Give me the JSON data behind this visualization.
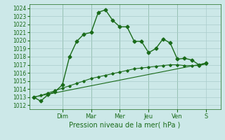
{
  "xlabel": "Pression niveau de la mer( hPa )",
  "ylim": [
    1011.5,
    1024.5
  ],
  "yticks": [
    1012,
    1013,
    1014,
    1015,
    1016,
    1017,
    1018,
    1019,
    1020,
    1021,
    1022,
    1023,
    1024
  ],
  "xlim": [
    -0.3,
    13.0
  ],
  "background_color": "#cce8e8",
  "grid_color": "#aacccc",
  "line_color": "#1a6b1a",
  "day_labels": [
    "Dim",
    "Mar",
    "Mer",
    "Jeu",
    "Ven",
    "S"
  ],
  "day_positions": [
    2.0,
    4.0,
    6.0,
    8.0,
    10.0,
    12.0
  ],
  "series1_x": [
    0,
    0.5,
    1.0,
    1.5,
    2.0,
    2.5,
    3.0,
    3.5,
    4.0,
    4.5,
    5.0,
    5.5,
    6.0,
    6.5,
    7.0,
    7.5,
    8.0,
    8.5,
    9.0,
    9.5,
    10.0,
    10.5,
    11.0,
    11.5,
    12.0
  ],
  "series1_y": [
    1013.0,
    1012.5,
    1013.3,
    1013.7,
    1014.5,
    1018.0,
    1019.9,
    1020.8,
    1021.0,
    1023.5,
    1023.8,
    1022.5,
    1021.7,
    1021.7,
    1019.9,
    1019.9,
    1018.5,
    1019.0,
    1020.2,
    1019.7,
    1017.7,
    1017.8,
    1017.6,
    1017.0,
    1017.2
  ],
  "series2_x": [
    0,
    12.0
  ],
  "series2_y": [
    1013.0,
    1017.2
  ],
  "series3_x": [
    0,
    0.5,
    1.0,
    1.5,
    2.0,
    2.5,
    3.0,
    3.5,
    4.0,
    4.5,
    5.0,
    5.5,
    6.0,
    6.5,
    7.0,
    7.5,
    8.0,
    8.5,
    9.0,
    9.5,
    10.0,
    10.5,
    11.0,
    11.5,
    12.0
  ],
  "series3_y": [
    1013.0,
    1013.2,
    1013.5,
    1013.8,
    1014.1,
    1014.4,
    1014.7,
    1015.0,
    1015.3,
    1015.5,
    1015.7,
    1015.9,
    1016.1,
    1016.3,
    1016.5,
    1016.6,
    1016.7,
    1016.8,
    1016.9,
    1017.0,
    1017.0,
    1016.9,
    1016.9,
    1016.9,
    1017.1
  ]
}
